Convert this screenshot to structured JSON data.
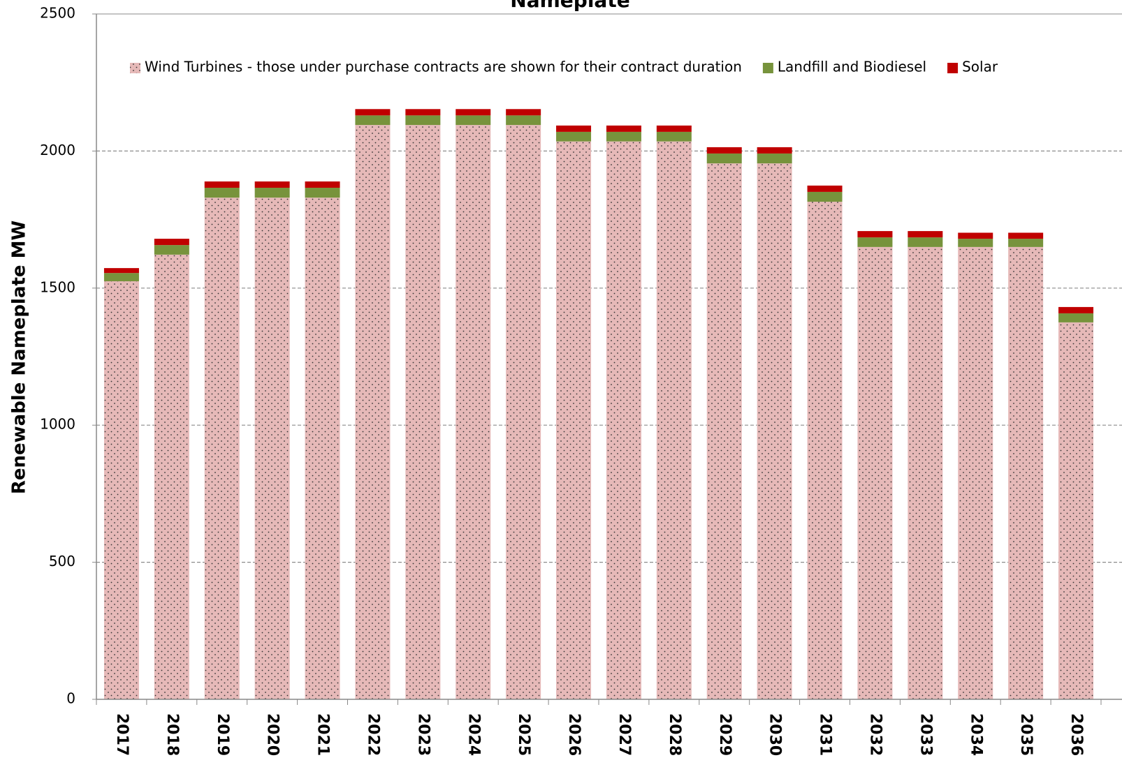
{
  "chart_data": {
    "type": "stacked-bar",
    "title": "Nameplate",
    "y_label": "Renewable Nameplate MW",
    "categories": [
      "2017",
      "2018",
      "2019",
      "2020",
      "2021",
      "2022",
      "2023",
      "2024",
      "2025",
      "2026",
      "2027",
      "2028",
      "2029",
      "2030",
      "2031",
      "2032",
      "2033",
      "2034",
      "2035",
      "2036"
    ],
    "series": [
      {
        "name": "Wind Turbines - those under purchase contracts are shown for their contract duration",
        "color": "#e6b9b8",
        "values": [
          1525,
          1622,
          1830,
          1830,
          1830,
          2095,
          2095,
          2095,
          2095,
          2035,
          2035,
          2035,
          1955,
          1955,
          1815,
          1650,
          1650,
          1650,
          1650,
          1375
        ]
      },
      {
        "name": "Landfill and Biodiesel",
        "color": "#77933c",
        "values": [
          30,
          35,
          36,
          36,
          36,
          35,
          35,
          35,
          35,
          35,
          35,
          35,
          36,
          36,
          36,
          35,
          35,
          30,
          30,
          33
        ]
      },
      {
        "name": "Solar",
        "color": "#c00000",
        "values": [
          18,
          23,
          23,
          23,
          23,
          23,
          23,
          23,
          23,
          23,
          23,
          23,
          23,
          23,
          23,
          23,
          23,
          22,
          22,
          23
        ]
      }
    ],
    "ylim": [
      0,
      2500
    ],
    "yticks": [
      0,
      500,
      1000,
      1500,
      2000,
      2500
    ],
    "grid": true,
    "legend": "top"
  }
}
